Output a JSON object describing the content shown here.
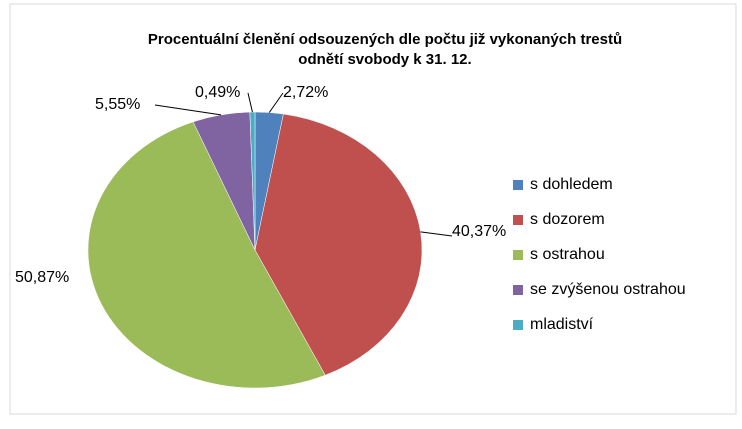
{
  "chart_data": {
    "type": "pie",
    "title": [
      "Procentuální členění odsouzených dle počtu již vykonaných trestů",
      "odnětí svobody k 31. 12."
    ],
    "categories": [
      "s dohledem",
      "s dozorem",
      "s ostrahou",
      "se zvýšenou ostrahou",
      "mladiství"
    ],
    "values": [
      2.72,
      40.37,
      50.87,
      5.55,
      0.49
    ],
    "value_labels": [
      "2,72%",
      "40,37%",
      "50,87%",
      "5,55%",
      "0,49%"
    ],
    "colors": [
      "#4f81bd",
      "#c0504d",
      "#9bbb59",
      "#8064a2",
      "#4bacc6"
    ],
    "legend": "right"
  }
}
